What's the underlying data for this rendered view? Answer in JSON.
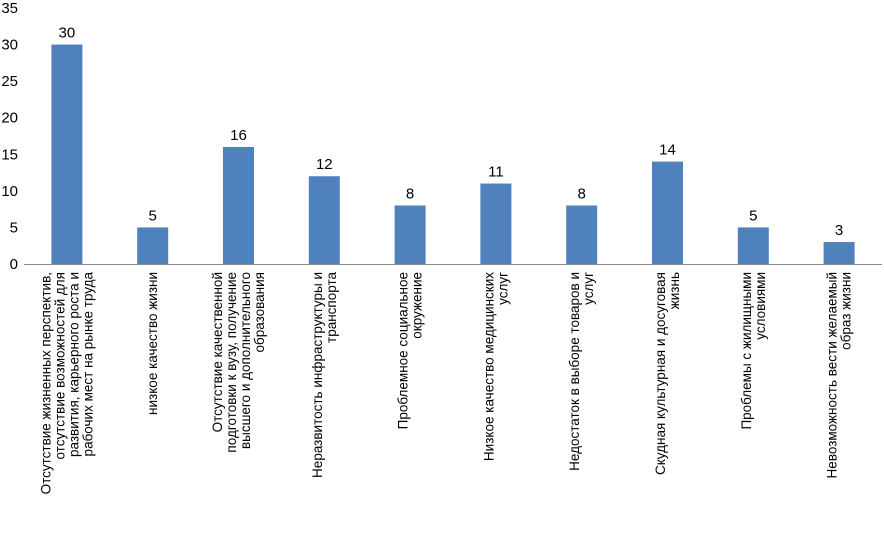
{
  "chart_data": {
    "type": "bar",
    "categories": [
      [
        "Отсутствие жизненных перспектив,",
        "отсутствие возможностей для",
        "развития, карьерного роста и",
        "рабочих мест на рынке труда"
      ],
      [
        "низкое качество жизни"
      ],
      [
        "Отсутствие качественной",
        "подготовки к вузу, получение",
        "высшего и дополнительного",
        "образования"
      ],
      [
        "Неразвитость инфраструктуры и",
        "транспорта"
      ],
      [
        "Проблемное социальное",
        "окружение"
      ],
      [
        "Низкое качество медицинских",
        "услуг"
      ],
      [
        "Недостаток в выборе товаров и",
        "услуг"
      ],
      [
        "Скудная культурная и досуговая",
        "жизнь"
      ],
      [
        "Проблемы с жилищными",
        "условиями"
      ],
      [
        "Невозможность вести желаемый",
        "образ жизни"
      ]
    ],
    "values": [
      30,
      5,
      16,
      12,
      8,
      11,
      8,
      14,
      5,
      3
    ],
    "ylim": [
      0,
      35
    ],
    "yticks": [
      0,
      5,
      10,
      15,
      20,
      25,
      30,
      35
    ],
    "grid": false,
    "legend": "none",
    "bar_color": "#4f81bd",
    "axis_color": "#898989"
  }
}
